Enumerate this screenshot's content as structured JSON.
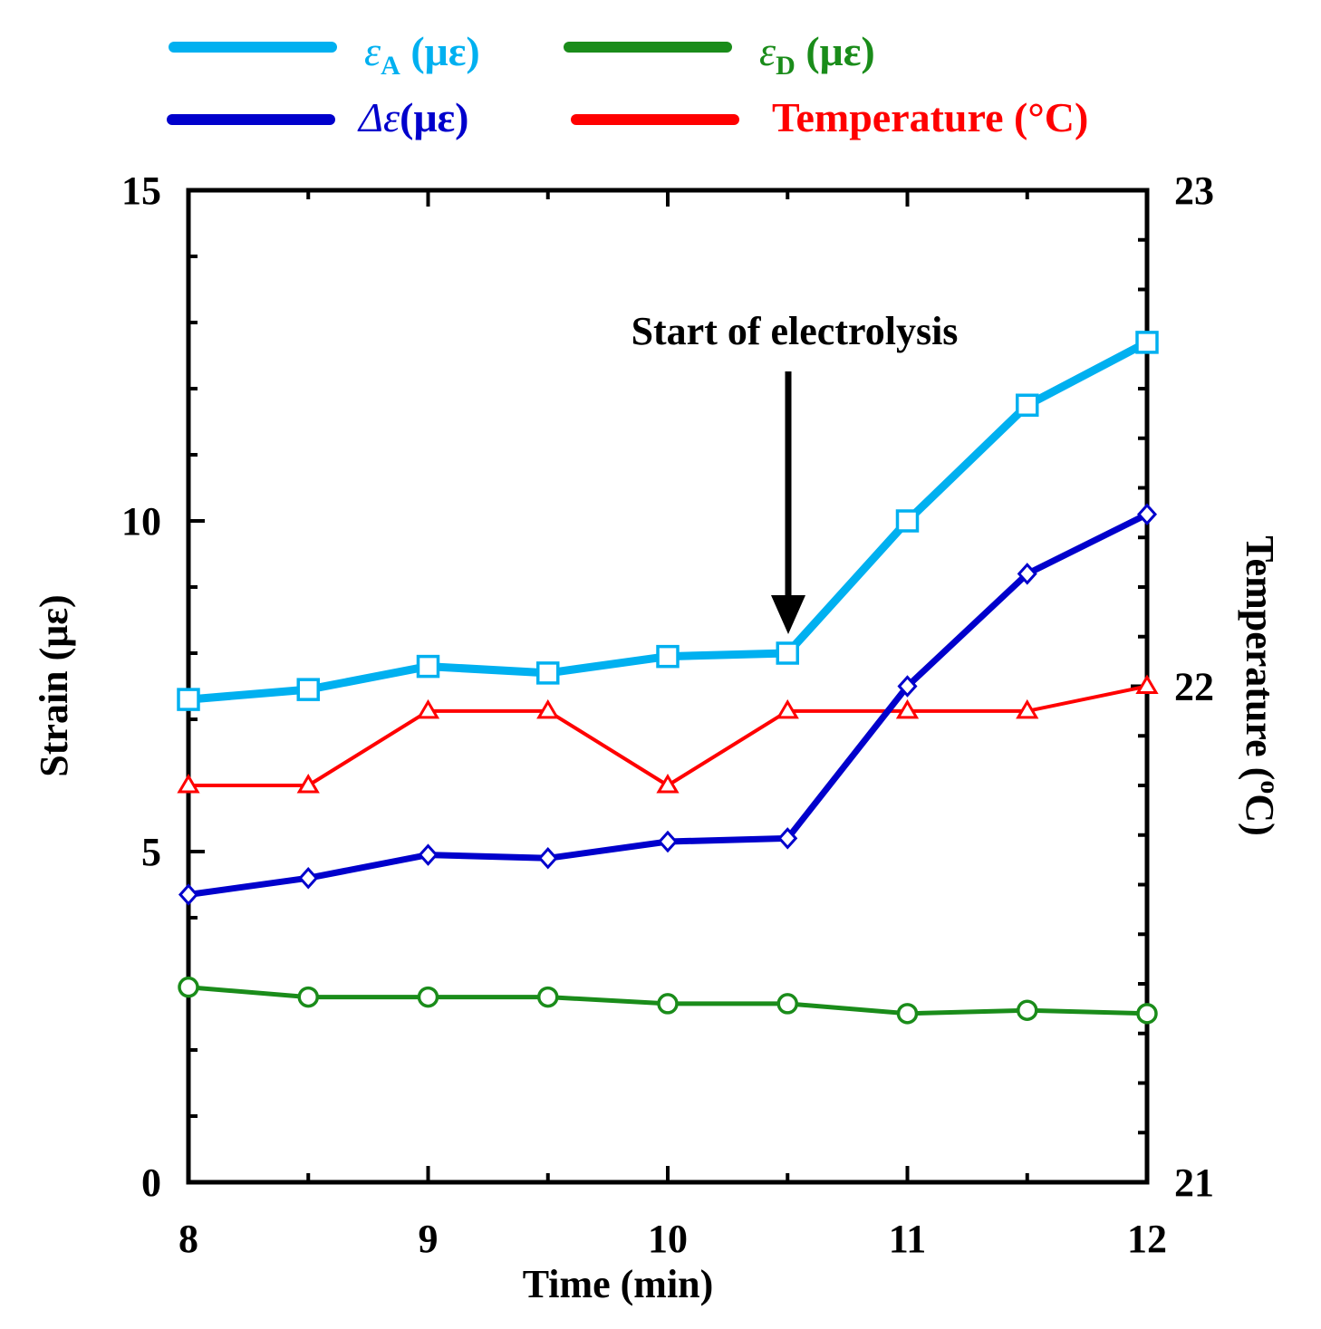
{
  "chart_data": {
    "type": "line",
    "x": [
      8,
      8.5,
      9,
      9.5,
      10,
      10.5,
      11,
      11.5,
      12
    ],
    "xlabel": "Time (min)",
    "ylabel": "Strain (με)",
    "y2label": "Temperature (°C)",
    "y2label_main": "Temperature (",
    "y2label_sup": "o",
    "y2label_end": "C)",
    "xlim": [
      8,
      12
    ],
    "ylim": [
      0,
      15
    ],
    "y2lim": [
      21,
      23
    ],
    "xticks": [
      "8",
      "9",
      "10",
      "11",
      "12"
    ],
    "yticks": [
      "0",
      "5",
      "10",
      "15"
    ],
    "y2ticks": [
      "21",
      "22",
      "23"
    ],
    "legend_position": "top",
    "series": [
      {
        "name": "εA (με)",
        "legend_sym": "ε",
        "legend_sub": "A",
        "legend_rest": " (με)",
        "color": "#00b0f0",
        "marker": "square",
        "axis": "left",
        "values": [
          7.3,
          7.45,
          7.8,
          7.7,
          7.95,
          8.0,
          10.0,
          11.75,
          12.7
        ]
      },
      {
        "name": "εD (με)",
        "legend_sym": "ε",
        "legend_sub": "D",
        "legend_rest": " (με)",
        "color": "#1a8c1a",
        "marker": "circle",
        "axis": "left",
        "values": [
          2.95,
          2.8,
          2.8,
          2.8,
          2.7,
          2.7,
          2.55,
          2.6,
          2.55
        ]
      },
      {
        "name": "Δε (με)",
        "legend_sym": "Δε",
        "legend_sub": "",
        "legend_rest": "(με)",
        "color": "#0000cc",
        "marker": "diamond",
        "axis": "left",
        "values": [
          4.35,
          4.6,
          4.95,
          4.9,
          5.15,
          5.2,
          7.5,
          9.2,
          10.1
        ]
      },
      {
        "name": "Temperature (°C)",
        "legend_sym": "",
        "legend_sub": "",
        "legend_rest": "Temperature (°C)",
        "color": "#ff0000",
        "marker": "triangle",
        "axis": "right",
        "values": [
          21.8,
          21.8,
          21.95,
          21.95,
          21.8,
          21.95,
          21.95,
          21.95,
          22.0
        ]
      }
    ],
    "annotation": {
      "text": "Start of electrolysis",
      "x": 10.5,
      "y": 8.3
    }
  }
}
